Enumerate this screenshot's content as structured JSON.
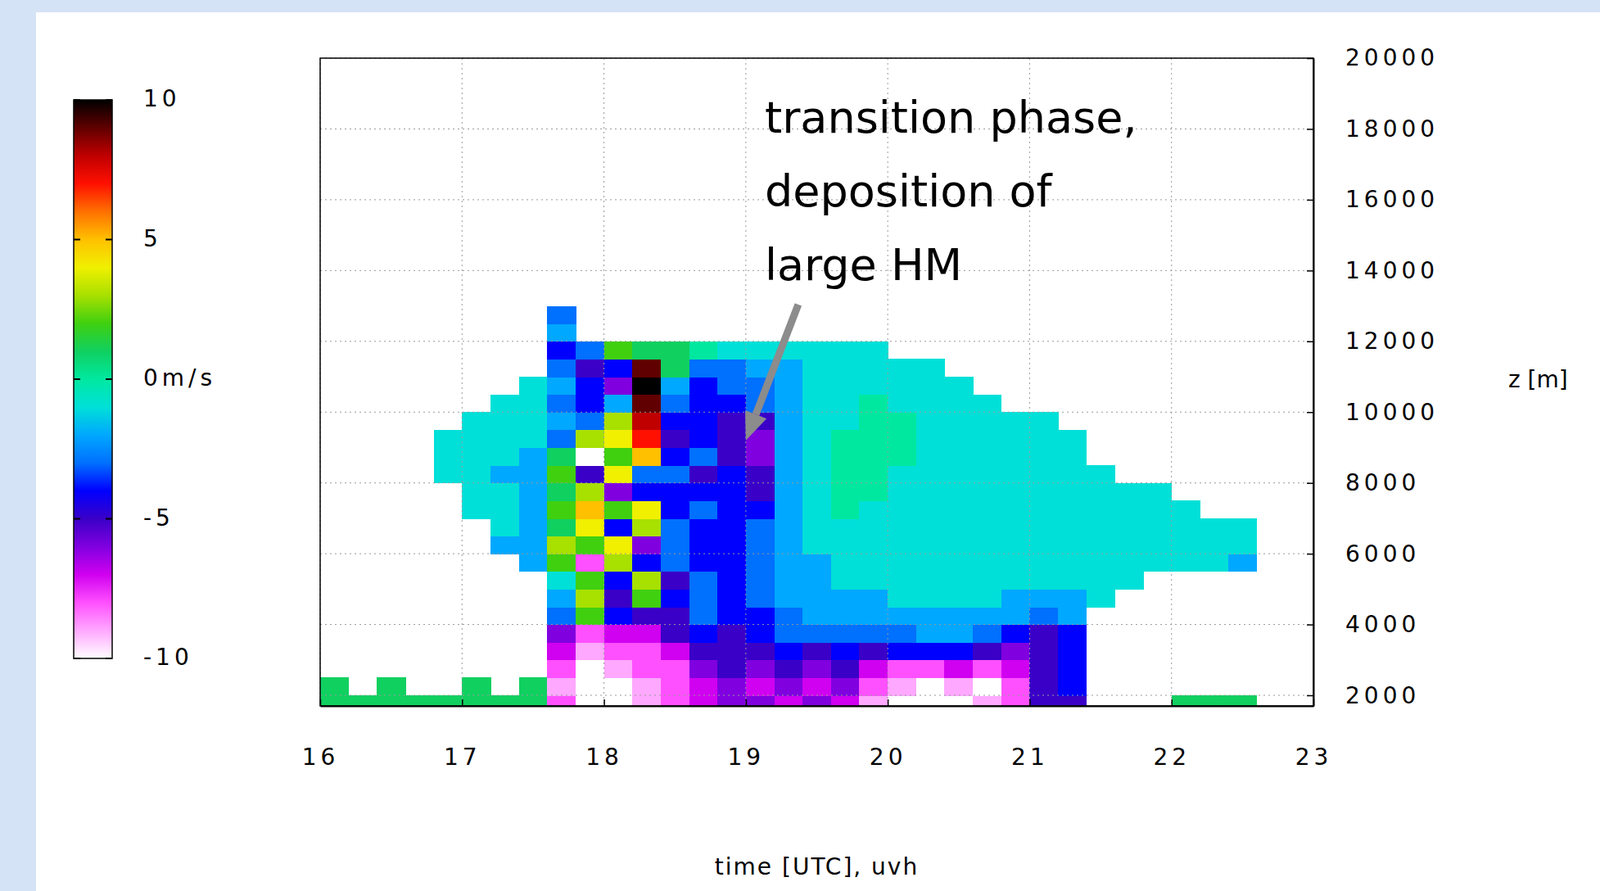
{
  "chart_data": {
    "type": "heatmap",
    "x_label": "time [UTC], uvh",
    "y_label": "z [m]",
    "xlim": [
      16,
      23
    ],
    "ylim": [
      1700,
      20000
    ],
    "xticks": [
      16,
      17,
      18,
      19,
      20,
      21,
      22,
      23
    ],
    "yticks": [
      2000,
      4000,
      6000,
      8000,
      10000,
      12000,
      14000,
      16000,
      18000,
      20000
    ],
    "grid": true,
    "x_edges": [
      16,
      16.2,
      16.4,
      16.6,
      16.8,
      17,
      17.2,
      17.4,
      17.6,
      17.8,
      18,
      18.2,
      18.4,
      18.6,
      18.8,
      19,
      19.2,
      19.4,
      19.6,
      19.8,
      20,
      20.2,
      20.4,
      20.6,
      20.8,
      21,
      21.2,
      21.4,
      21.6,
      21.8,
      22,
      22.2,
      22.4,
      22.6,
      22.8,
      23
    ],
    "y_edges": [
      1700,
      2000,
      2500,
      3000,
      3500,
      4000,
      4500,
      5000,
      5500,
      6000,
      6500,
      7000,
      7500,
      8000,
      8500,
      9000,
      9500,
      10000,
      10500,
      11000,
      11500,
      12000,
      12500,
      13000
    ],
    "values": [
      [
        1,
        1,
        1,
        1,
        1,
        1,
        1,
        1,
        -8,
        -10,
        -10,
        -9,
        -8,
        -7,
        -6,
        -6,
        -7,
        -6,
        -7,
        -9,
        -10,
        -10,
        -10,
        -9,
        -8,
        -5,
        -5,
        null,
        null,
        null,
        1,
        1,
        1,
        null,
        null
      ],
      [
        1,
        null,
        1,
        null,
        null,
        1,
        null,
        1,
        -9,
        -10,
        -10,
        -9,
        -8,
        -7,
        -6,
        -7,
        -6,
        -7,
        -6,
        -8,
        -9,
        -10,
        -9,
        -10,
        -8,
        -5,
        -4,
        null,
        null,
        null,
        null,
        null,
        null,
        null,
        null
      ],
      [
        null,
        null,
        null,
        null,
        null,
        null,
        null,
        null,
        -8,
        -10,
        -9,
        -8,
        -8,
        -6,
        -5,
        -6,
        -5,
        -6,
        -5,
        -7,
        -8,
        -8,
        -7,
        -8,
        -7,
        -5,
        -4,
        null,
        null,
        null,
        null,
        null,
        null,
        null,
        null
      ],
      [
        null,
        null,
        null,
        null,
        null,
        null,
        null,
        null,
        -7,
        -9,
        -8,
        -8,
        -7,
        -5,
        -5,
        -5,
        -4,
        -5,
        -4,
        -5,
        -4,
        -4,
        -4,
        -5,
        -6,
        -5,
        -4,
        null,
        null,
        null,
        null,
        null,
        null,
        null,
        null
      ],
      [
        null,
        null,
        null,
        null,
        null,
        null,
        null,
        null,
        -6,
        -8,
        -7,
        -7,
        -5,
        -4,
        -5,
        -4,
        -3,
        -3,
        -3,
        -3,
        -3,
        -2,
        -2,
        -3,
        -4,
        -5,
        -4,
        null,
        null,
        null,
        null,
        null,
        null,
        null,
        null
      ],
      [
        null,
        null,
        null,
        null,
        null,
        null,
        null,
        null,
        -3,
        2,
        -4,
        -5,
        -5,
        -3,
        -4,
        -4,
        -3,
        -2,
        -2,
        -2,
        -2,
        -2,
        -2,
        -2,
        -2,
        -3,
        -2,
        null,
        null,
        null,
        null,
        null,
        null,
        null,
        null
      ],
      [
        null,
        null,
        null,
        null,
        null,
        null,
        null,
        null,
        -2,
        3,
        -5,
        2,
        -4,
        -3,
        -4,
        -3,
        -2,
        -2,
        -2,
        -2,
        -1,
        -1,
        -1,
        -1,
        -2,
        -2,
        -2,
        -1,
        null,
        null,
        null,
        null,
        null,
        null,
        null
      ],
      [
        null,
        null,
        null,
        null,
        null,
        null,
        null,
        null,
        -1,
        2,
        -4,
        3,
        -5,
        -3,
        -4,
        -3,
        -2,
        -2,
        -1,
        -1,
        -1,
        -1,
        -1,
        -1,
        -1,
        -1,
        -1,
        -1,
        -1,
        null,
        null,
        null,
        null,
        null,
        null
      ],
      [
        null,
        null,
        null,
        null,
        null,
        null,
        null,
        -2,
        2,
        -8,
        3,
        -4,
        -3,
        -4,
        -4,
        -3,
        -2,
        -2,
        -1,
        -1,
        -1,
        -1,
        -1,
        -1,
        -1,
        -1,
        -1,
        -1,
        -1,
        -1,
        -1,
        -1,
        -2,
        null,
        null
      ],
      [
        null,
        null,
        null,
        null,
        null,
        null,
        -2,
        -2,
        3,
        2,
        4,
        -6,
        -3,
        -4,
        -4,
        -3,
        -2,
        -1,
        -1,
        -1,
        -1,
        -1,
        -1,
        -1,
        -1,
        -1,
        -1,
        -1,
        -1,
        -1,
        -1,
        -1,
        -1,
        null,
        null
      ],
      [
        null,
        null,
        null,
        null,
        null,
        null,
        -1,
        -2,
        1,
        4,
        -4,
        3,
        -3,
        -4,
        -4,
        -3,
        -2,
        -1,
        -1,
        -1,
        -1,
        -1,
        -1,
        -1,
        -1,
        -1,
        -1,
        -1,
        -1,
        -1,
        -1,
        -1,
        -1,
        null,
        null
      ],
      [
        null,
        null,
        null,
        null,
        null,
        -1,
        -1,
        -2,
        2,
        5,
        2,
        4,
        -4,
        -3,
        -4,
        -4,
        -2,
        -1,
        0,
        -1,
        -1,
        -1,
        -1,
        -1,
        -1,
        -1,
        -1,
        -1,
        -1,
        -1,
        -1,
        null,
        null,
        null,
        null
      ],
      [
        null,
        null,
        null,
        null,
        null,
        -1,
        -1,
        -2,
        1,
        3,
        -6,
        -4,
        -4,
        -4,
        -4,
        -5,
        -2,
        -1,
        0,
        0,
        -1,
        -1,
        -1,
        -1,
        -1,
        -1,
        -1,
        -1,
        -1,
        -1,
        null,
        null,
        null,
        null,
        null
      ],
      [
        null,
        null,
        null,
        null,
        -1,
        -1,
        -2,
        -2,
        2,
        -5,
        4,
        -3,
        -3,
        -5,
        -4,
        -5,
        -2,
        -1,
        0,
        0,
        -1,
        -1,
        -1,
        -1,
        -1,
        -1,
        -1,
        -1,
        null,
        null,
        null,
        null,
        null,
        null,
        null
      ],
      [
        null,
        null,
        null,
        null,
        -1,
        -1,
        -1,
        -2,
        1,
        -10,
        2,
        5,
        -4,
        -3,
        -5,
        -6,
        -2,
        -1,
        0,
        0,
        0,
        -1,
        -1,
        -1,
        -1,
        -1,
        -1,
        null,
        null,
        null,
        null,
        null,
        null,
        null,
        null
      ],
      [
        null,
        null,
        null,
        null,
        -1,
        -1,
        -1,
        -1,
        -3,
        3,
        4,
        7,
        -5,
        -4,
        -5,
        -6,
        -2,
        -1,
        0,
        0,
        0,
        -1,
        -1,
        -1,
        -1,
        -1,
        -1,
        null,
        null,
        null,
        null,
        null,
        null,
        null,
        null
      ],
      [
        null,
        null,
        null,
        null,
        null,
        -1,
        -1,
        -1,
        -2,
        -3,
        3,
        8,
        -4,
        -4,
        -5,
        -5,
        -2,
        -1,
        -1,
        0,
        0,
        -1,
        -1,
        -1,
        -1,
        -1,
        null,
        null,
        null,
        null,
        null,
        null,
        null,
        null,
        null
      ],
      [
        null,
        null,
        null,
        null,
        null,
        null,
        -1,
        -1,
        -3,
        -4,
        -2,
        9,
        -3,
        -4,
        -4,
        -3,
        -2,
        -1,
        -1,
        0,
        -1,
        -1,
        -1,
        -1,
        null,
        null,
        null,
        null,
        null,
        null,
        null,
        null,
        null,
        null,
        null
      ],
      [
        null,
        null,
        null,
        null,
        null,
        null,
        null,
        -1,
        -2,
        -4,
        -6,
        10,
        -2,
        -4,
        -3,
        -3,
        -2,
        -1,
        -1,
        -1,
        -1,
        -1,
        -1,
        null,
        null,
        null,
        null,
        null,
        null,
        null,
        null,
        null,
        null,
        null,
        null
      ],
      [
        null,
        null,
        null,
        null,
        null,
        null,
        null,
        null,
        -3,
        -5,
        -4,
        9,
        1,
        -3,
        -3,
        -2,
        -2,
        -1,
        -1,
        -1,
        -1,
        -1,
        null,
        null,
        null,
        null,
        null,
        null,
        null,
        null,
        null,
        null,
        null,
        null,
        null
      ],
      [
        null,
        null,
        null,
        null,
        null,
        null,
        null,
        null,
        -4,
        -3,
        2,
        1,
        1,
        0,
        -1,
        -1,
        -1,
        -1,
        -1,
        -1,
        null,
        null,
        null,
        null,
        null,
        null,
        null,
        null,
        null,
        null,
        null,
        null,
        null,
        null,
        null
      ],
      [
        null,
        null,
        null,
        null,
        null,
        null,
        null,
        null,
        -2,
        null,
        null,
        null,
        null,
        null,
        null,
        null,
        null,
        null,
        null,
        null,
        null,
        null,
        null,
        null,
        null,
        null,
        null,
        null,
        null,
        null,
        null,
        null,
        null,
        null,
        null
      ],
      [
        null,
        null,
        null,
        null,
        null,
        null,
        null,
        null,
        -3,
        null,
        null,
        null,
        null,
        null,
        null,
        null,
        null,
        null,
        null,
        null,
        null,
        null,
        null,
        null,
        null,
        null,
        null,
        null,
        null,
        null,
        null,
        null,
        null,
        null,
        null
      ]
    ],
    "colorbar": {
      "range": [
        -10,
        10
      ],
      "ticks": [
        -10,
        -5,
        {
          "value": 0,
          "label": "0m/s"
        },
        5,
        10
      ]
    },
    "annotation": {
      "text": [
        "transition phase,",
        "deposition of",
        "large HM"
      ],
      "xy": [
        19.0,
        9200
      ]
    }
  }
}
